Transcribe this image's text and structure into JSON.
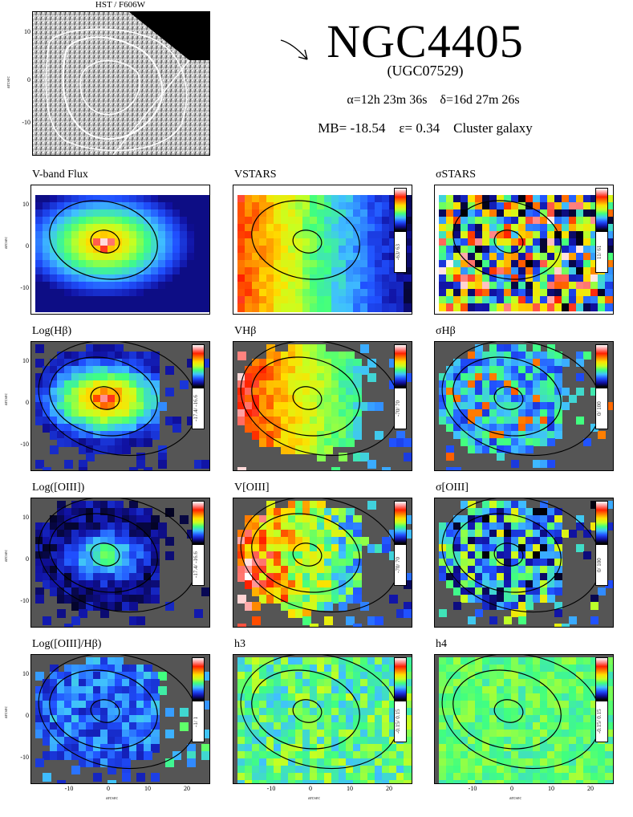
{
  "hst": {
    "title": "HST / F606W",
    "yticks": [
      "10",
      "0",
      "-10"
    ],
    "ylabel": "arcsec"
  },
  "header": {
    "name": "NGC4405",
    "alt_name": "(UGC07529)",
    "ra": "α=12h 23m 36s",
    "dec": "δ=16d 27m 26s",
    "mag": "MB= -18.54",
    "ellipticity": "ε= 0.34",
    "environment": "Cluster galaxy"
  },
  "axes": {
    "yticks": [
      "10",
      "0",
      "-10"
    ],
    "xticks": [
      "-10",
      "0",
      "10",
      "20"
    ],
    "xlabel": "arcsec",
    "ylabel": "arcsec"
  },
  "panels": [
    {
      "title": "V-band Flux",
      "cbar": "",
      "type": "flux"
    },
    {
      "title": "VSTARS",
      "cbar": "-63/ 63",
      "type": "vel"
    },
    {
      "title": "σSTARS",
      "cbar": "11/ 61",
      "type": "disp"
    },
    {
      "title": "Log(Hβ)",
      "cbar": "-17.4/ -16.6",
      "type": "logem"
    },
    {
      "title": "VHβ",
      "cbar": "-70/ 70",
      "type": "velg"
    },
    {
      "title": "σHβ",
      "cbar": "0/ 100",
      "type": "dispg"
    },
    {
      "title": "Log([OIII])",
      "cbar": "-17.4/ -16.6",
      "type": "logo3"
    },
    {
      "title": "V[OIII]",
      "cbar": "-70/ 70",
      "type": "velo3"
    },
    {
      "title": "σ[OIII]",
      "cbar": "0/ 100",
      "type": "dispo3"
    },
    {
      "title": "Log([OIII]/Hβ)",
      "cbar": "-1/ 1",
      "type": "ratio"
    },
    {
      "title": "h3",
      "cbar": "-0.15/ 0.15",
      "type": "h3"
    },
    {
      "title": "h4",
      "cbar": "-0.15/ 0.15",
      "type": "h4"
    }
  ],
  "colors": {
    "accent": "#000000",
    "background_gray": "#555555"
  }
}
